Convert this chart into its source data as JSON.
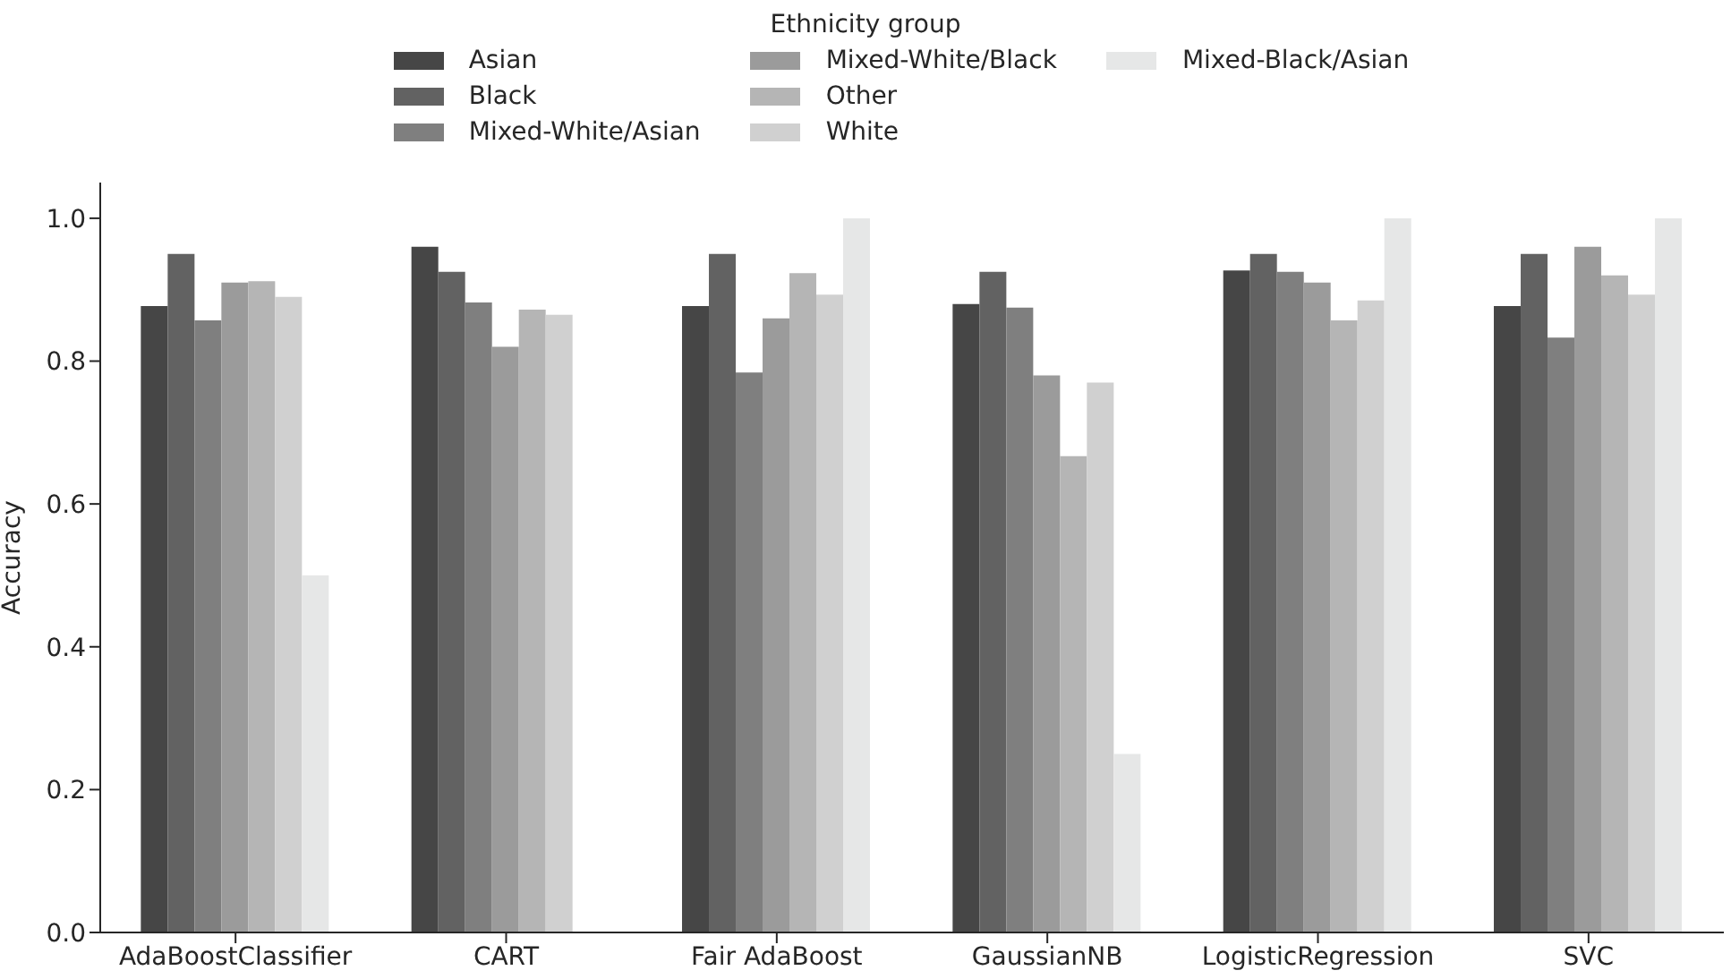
{
  "chart_data": {
    "type": "bar",
    "ylabel": "Accuracy",
    "legend_title": "Ethnicity group",
    "legend": "top",
    "grid": false,
    "categories": [
      "AdaBoostClassifier",
      "CART",
      "Fair AdaBoost",
      "GaussianNB",
      "LogisticRegression",
      "SVC"
    ],
    "series": [
      {
        "name": "Asian",
        "color": "#464646",
        "values": [
          0.877,
          0.96,
          0.877,
          0.88,
          0.927,
          0.877
        ]
      },
      {
        "name": "Black",
        "color": "#626262",
        "values": [
          0.95,
          0.925,
          0.95,
          0.925,
          0.95,
          0.95
        ]
      },
      {
        "name": "Mixed-White/Asian",
        "color": "#7f7f7f",
        "values": [
          0.857,
          0.882,
          0.784,
          0.875,
          0.925,
          0.833
        ]
      },
      {
        "name": "Mixed-White/Black",
        "color": "#9b9b9b",
        "values": [
          0.91,
          0.82,
          0.86,
          0.78,
          0.91,
          0.96
        ]
      },
      {
        "name": "Other",
        "color": "#b5b5b5",
        "values": [
          0.912,
          0.872,
          0.923,
          0.667,
          0.857,
          0.92
        ]
      },
      {
        "name": "White",
        "color": "#d0d0d0",
        "values": [
          0.89,
          0.865,
          0.893,
          0.77,
          0.885,
          0.893
        ]
      },
      {
        "name": "Mixed-Black/Asian",
        "color": "#e6e7e7",
        "values": [
          0.5,
          null,
          1.0,
          0.25,
          1.0,
          1.0
        ]
      }
    ],
    "ylim": [
      0,
      1.05
    ],
    "yticks": [
      {
        "value": 0,
        "label": "0.0"
      },
      {
        "value": 0.2,
        "label": "0.2"
      },
      {
        "value": 0.4,
        "label": "0.4"
      },
      {
        "value": 0.6,
        "label": "0.6"
      },
      {
        "value": 0.8,
        "label": "0.8"
      },
      {
        "value": 1.0,
        "label": "1.0"
      }
    ]
  }
}
